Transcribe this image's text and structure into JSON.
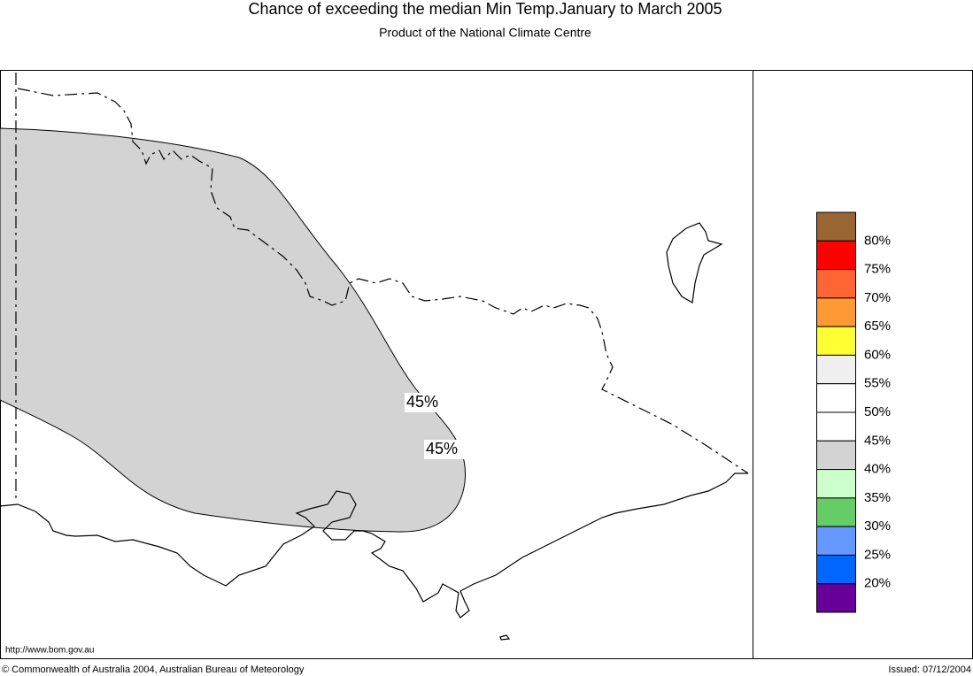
{
  "header": {
    "title": "Chance of exceeding the median Min Temp.January to March 2005",
    "subtitle": "Product of the National Climate Centre"
  },
  "map": {
    "region_color": "#d3d3d3",
    "contour_labels": [
      "45%",
      "45%"
    ]
  },
  "legend": {
    "labels": [
      "80%",
      "75%",
      "70%",
      "65%",
      "60%",
      "55%",
      "50%",
      "45%",
      "40%",
      "35%",
      "30%",
      "25%",
      "20%"
    ],
    "colors": [
      "#996633",
      "#ff0000",
      "#ff6633",
      "#ff9933",
      "#ffff33",
      "#f0f0f0",
      "#ffffff",
      "#ffffff",
      "#d3d3d3",
      "#ccffcc",
      "#66cc66",
      "#6699ff",
      "#0066ff",
      "#660099"
    ]
  },
  "footer": {
    "url": "http://www.bom.gov.au",
    "copyright": "© Commonwealth of Australia 2004, Australian Bureau of Meteorology",
    "issued": "Issued: 07/12/2004"
  }
}
